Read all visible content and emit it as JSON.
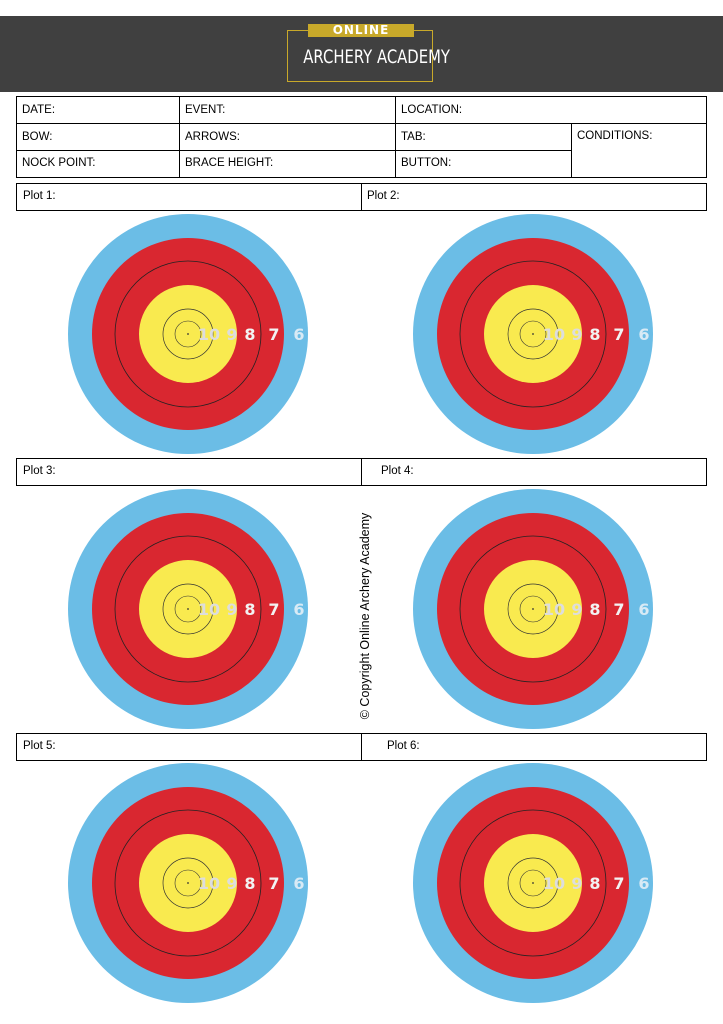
{
  "logo": {
    "top_text": "ONLINE",
    "main_text": "ARCHERY ACADEMY"
  },
  "fields": {
    "date": "DATE:",
    "event": "EVENT:",
    "location": "LOCATION:",
    "bow": "BOW:",
    "arrows": "ARROWS:",
    "tab": "TAB:",
    "conditions": "CONDITIONS:",
    "nock_point": "NOCK POINT:",
    "brace_height": "BRACE HEIGHT:",
    "button": "BUTTON:"
  },
  "plots": [
    "Plot 1:",
    "Plot 2:",
    "Plot 3:",
    "Plot 4:",
    "Plot 5:",
    "Plot 6:"
  ],
  "target_numbers": [
    "10",
    "9",
    "8",
    "7",
    "6"
  ],
  "colors": {
    "blue": "#6bbde6",
    "red": "#d92730",
    "yellow": "#f9ea4f",
    "header": "#404040",
    "gold": "#c8a92a"
  },
  "copyright": "© Copyright Online Archery Academy"
}
